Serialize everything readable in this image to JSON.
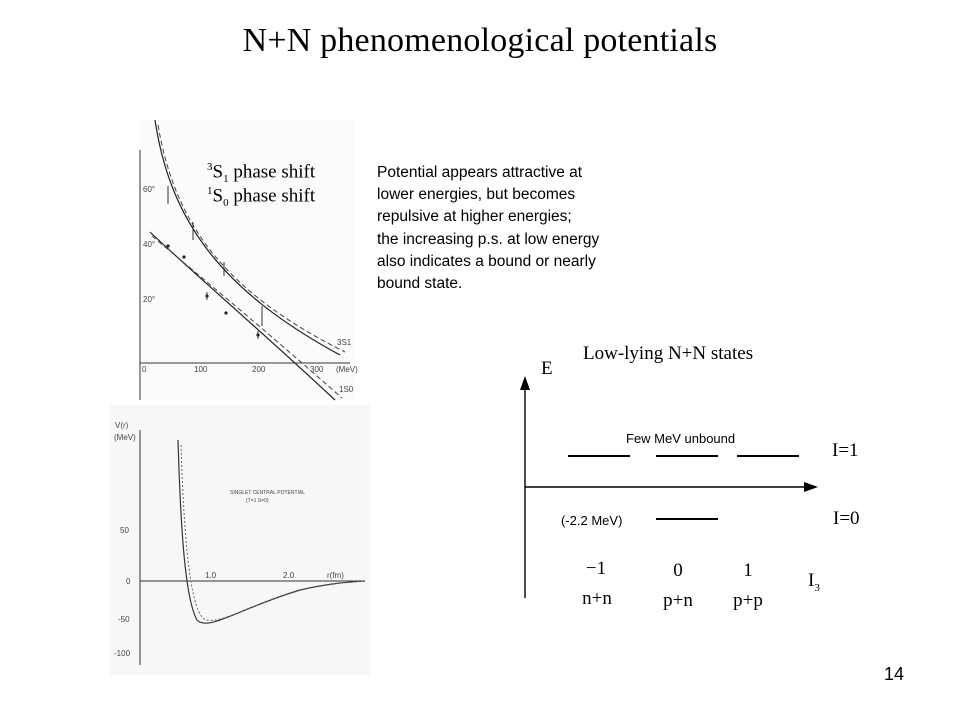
{
  "title": "N+N phenomenological potentials",
  "phase_shift_plot": {
    "legend": [
      {
        "sup": "3",
        "letter": "S",
        "sub": "1",
        "text": " phase shift"
      },
      {
        "sup": "1",
        "letter": "S",
        "sub": "0",
        "text": " phase shift"
      }
    ],
    "y_ticks": [
      "60°",
      "40°",
      "20°",
      "0"
    ],
    "x_ticks": [
      "100",
      "200",
      "300"
    ],
    "x_unit": "(MeV)",
    "curve_labels": [
      "3S1",
      "1S0"
    ]
  },
  "description_lines": [
    "Potential appears attractive at",
    "lower energies, but becomes",
    "repulsive at higher energies;",
    "the increasing p.s. at low energy",
    "also indicates a bound or nearly",
    "bound state."
  ],
  "potential_plot": {
    "y_label": "V(r)",
    "y_unit": "(MeV)",
    "y_ticks": [
      "50",
      "0",
      "-50",
      "-100"
    ],
    "x_ticks": [
      "1.0",
      "2.0"
    ],
    "x_label": "r(fm)",
    "inset_line1": "SINGLET CENTRAL POTENTIAL",
    "inset_line2": "(T=1  S=0)"
  },
  "states_diagram": {
    "title": "Low-lying N+N states",
    "energy_axis": "E",
    "unbound_note": "Few MeV unbound",
    "binding_note": "(-2.2 MeV)",
    "isospin_1": "I=1",
    "isospin_0": "I=0",
    "axis_label": "I",
    "axis_label_sub": "3",
    "columns": [
      {
        "i3": "−1",
        "pair": "n+n"
      },
      {
        "i3": "0",
        "pair": "p+n"
      },
      {
        "i3": "1",
        "pair": "p+p"
      }
    ]
  },
  "page_number": "14"
}
